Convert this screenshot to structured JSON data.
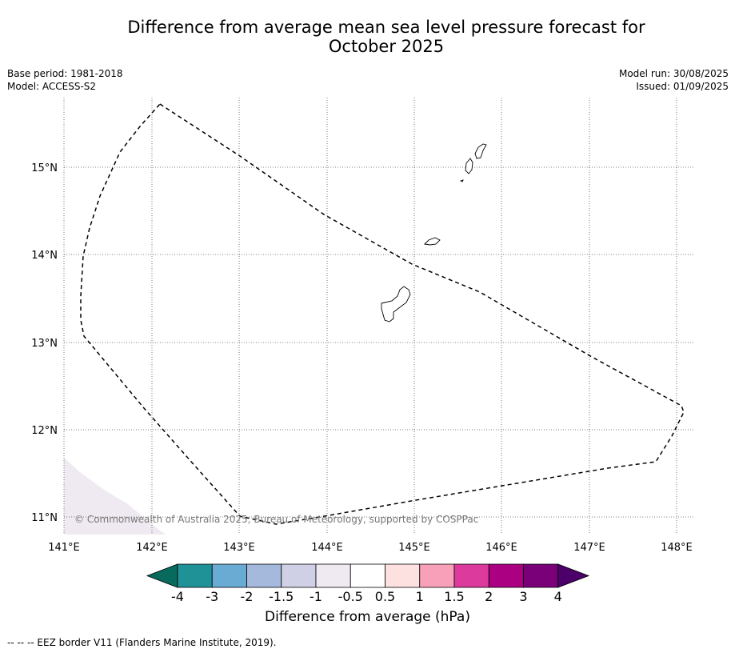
{
  "title_line1": "Difference from average mean sea level pressure forecast for",
  "title_line2": "October 2025",
  "meta": {
    "base_period": "Base period: 1981-2018",
    "model": "Model: ACCESS-S2",
    "model_run": "Model run: 30/08/2025",
    "issued": "Issued: 01/09/2025"
  },
  "map": {
    "lat_ticks": [
      "15°N",
      "14°N",
      "13°N",
      "12°N",
      "11°N"
    ],
    "lon_ticks": [
      "141°E",
      "142°E",
      "143°E",
      "144°E",
      "145°E",
      "146°E",
      "147°E",
      "148°E"
    ],
    "copyright": "© Commonwealth of Australia 2025, Bureau of Meteorology, supported by COSPPac",
    "shading_color": "#efeaf1",
    "border_style": "dashed",
    "grid": true
  },
  "colorbar": {
    "labels": [
      "-4",
      "-3",
      "-2",
      "-1.5",
      "-1",
      "-0.5",
      "0.5",
      "1",
      "1.5",
      "2",
      "3",
      "4"
    ],
    "colors": [
      "#076a5c",
      "#1f9298",
      "#6aabd3",
      "#a5b9dc",
      "#cfcfe6",
      "#efeaf1",
      "#ffffff",
      "#fde0e0",
      "#f8a0ba",
      "#dc3a9c",
      "#ac0083",
      "#7a0079",
      "#4b006a"
    ],
    "title": "Difference from average (hPa)"
  },
  "footer": "--  --  -- EEZ border V11 (Flanders Marine Institute, 2019)."
}
